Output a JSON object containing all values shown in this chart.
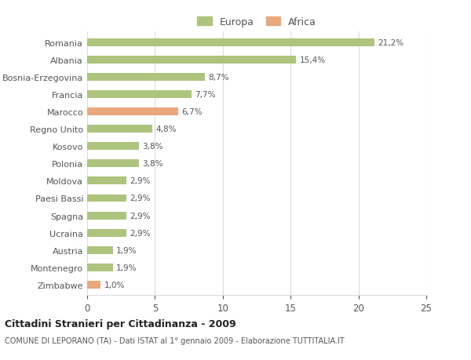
{
  "countries": [
    "Romania",
    "Albania",
    "Bosnia-Erzegovina",
    "Francia",
    "Marocco",
    "Regno Unito",
    "Kosovo",
    "Polonia",
    "Moldova",
    "Paesi Bassi",
    "Spagna",
    "Ucraina",
    "Austria",
    "Montenegro",
    "Zimbabwe"
  ],
  "values": [
    21.2,
    15.4,
    8.7,
    7.7,
    6.7,
    4.8,
    3.8,
    3.8,
    2.9,
    2.9,
    2.9,
    2.9,
    1.9,
    1.9,
    1.0
  ],
  "labels": [
    "21,2%",
    "15,4%",
    "8,7%",
    "7,7%",
    "6,7%",
    "4,8%",
    "3,8%",
    "3,8%",
    "2,9%",
    "2,9%",
    "2,9%",
    "2,9%",
    "1,9%",
    "1,9%",
    "1,0%"
  ],
  "continents": [
    "Europa",
    "Europa",
    "Europa",
    "Europa",
    "Africa",
    "Europa",
    "Europa",
    "Europa",
    "Europa",
    "Europa",
    "Europa",
    "Europa",
    "Europa",
    "Europa",
    "Africa"
  ],
  "europa_color": "#adc47d",
  "africa_color": "#e8a87c",
  "background_color": "#ffffff",
  "grid_color": "#dddddd",
  "text_color": "#555555",
  "title_line1": "Cittadini Stranieri per Cittadinanza - 2009",
  "title_line2": "COMUNE DI LEPORANO (TA) - Dati ISTAT al 1° gennaio 2009 - Elaborazione TUTTITALIA.IT",
  "xlim": [
    0,
    25
  ],
  "xticks": [
    0,
    5,
    10,
    15,
    20,
    25
  ],
  "legend_europa": "Europa",
  "legend_africa": "Africa",
  "bar_height": 0.45
}
